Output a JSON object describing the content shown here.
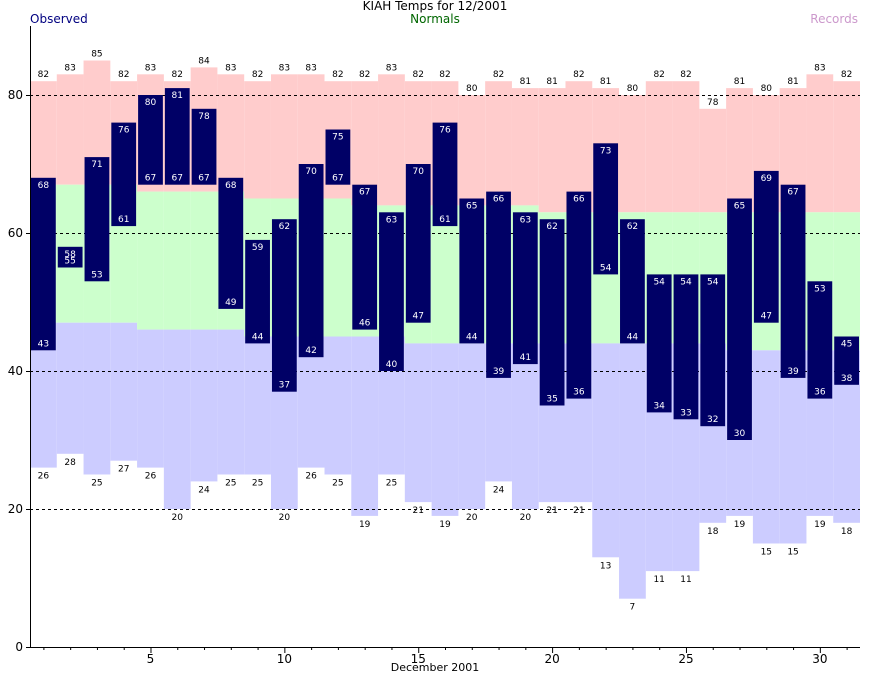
{
  "chart_data": {
    "type": "bar",
    "title": "KIAH Temps for 12/2001",
    "xlabel": "December 2001",
    "ylabel": "",
    "ylim": [
      0,
      90
    ],
    "xlim": [
      0.5,
      31.5
    ],
    "yticks": [
      0,
      20,
      40,
      60,
      80
    ],
    "xticks": [
      5,
      10,
      15,
      20,
      25,
      30
    ],
    "grid": "horizontal-dashed",
    "legend_placement": "top",
    "days": [
      1,
      2,
      3,
      4,
      5,
      6,
      7,
      8,
      9,
      10,
      11,
      12,
      13,
      14,
      15,
      16,
      17,
      18,
      19,
      20,
      21,
      22,
      23,
      24,
      25,
      26,
      27,
      28,
      29,
      30,
      31
    ],
    "series": [
      {
        "name": "Observed",
        "role": "observed_high",
        "color": "#000066",
        "values": [
          68,
          58,
          71,
          76,
          80,
          81,
          78,
          68,
          59,
          62,
          70,
          75,
          67,
          63,
          70,
          76,
          65,
          66,
          63,
          62,
          66,
          73,
          62,
          54,
          54,
          54,
          65,
          69,
          67,
          53,
          45
        ]
      },
      {
        "name": "Observed",
        "role": "observed_low",
        "color": "#000066",
        "values": [
          43,
          55,
          53,
          61,
          67,
          67,
          67,
          49,
          44,
          37,
          42,
          67,
          46,
          40,
          47,
          61,
          44,
          39,
          41,
          35,
          36,
          54,
          44,
          34,
          33,
          32,
          30,
          47,
          39,
          36,
          38
        ]
      },
      {
        "name": "Normals",
        "role": "normal_high",
        "color": "#ccffcc",
        "values": [
          67,
          67,
          67,
          67,
          66,
          66,
          66,
          66,
          65,
          65,
          65,
          65,
          64,
          64,
          64,
          64,
          64,
          64,
          64,
          63,
          63,
          63,
          63,
          63,
          63,
          63,
          63,
          63,
          63,
          63,
          63
        ]
      },
      {
        "name": "Normals",
        "role": "normal_low",
        "color": "#ccccff",
        "values": [
          47,
          47,
          47,
          47,
          46,
          46,
          46,
          46,
          45,
          45,
          45,
          45,
          45,
          45,
          44,
          44,
          44,
          44,
          44,
          44,
          44,
          44,
          44,
          44,
          44,
          44,
          43,
          43,
          43,
          43,
          43
        ]
      },
      {
        "name": "Records",
        "role": "record_high",
        "color": "#ffcccc",
        "values": [
          82,
          83,
          85,
          82,
          83,
          82,
          84,
          83,
          82,
          83,
          83,
          82,
          82,
          83,
          82,
          82,
          80,
          82,
          81,
          81,
          82,
          81,
          80,
          82,
          82,
          78,
          81,
          80,
          81,
          83,
          82
        ]
      },
      {
        "name": "Records",
        "role": "record_low",
        "color": "#ccccff",
        "values": [
          26,
          28,
          25,
          27,
          26,
          20,
          24,
          25,
          25,
          20,
          26,
          25,
          19,
          25,
          21,
          19,
          20,
          24,
          20,
          21,
          21,
          13,
          7,
          11,
          11,
          18,
          19,
          15,
          15,
          19,
          18
        ]
      }
    ]
  },
  "legend": {
    "observed_label": "Observed",
    "observed_color": "#000080",
    "normals_label": "Normals",
    "normals_color": "#006600",
    "records_label": "Records",
    "records_color": "#cc99cc"
  }
}
